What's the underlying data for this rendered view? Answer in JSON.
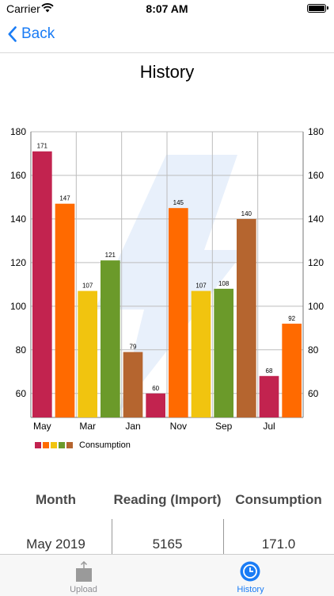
{
  "status_bar": {
    "carrier": "Carrier",
    "time": "8:07 AM"
  },
  "nav": {
    "back_label": "Back"
  },
  "page": {
    "title": "History"
  },
  "chart_data": {
    "type": "bar",
    "categories": [
      "May",
      "",
      "Mar",
      "",
      "Jan",
      "",
      "Nov",
      "",
      "Sep",
      "",
      "Jul",
      ""
    ],
    "values": [
      171,
      147,
      107,
      121,
      79,
      60,
      145,
      107,
      108,
      140,
      68,
      92
    ],
    "colors": [
      "#c2234f",
      "#ff6a00",
      "#f1c40f",
      "#6b9a2a",
      "#b5652f",
      "#c2234f",
      "#ff6a00",
      "#f1c40f",
      "#6b9a2a",
      "#b5652f",
      "#c2234f",
      "#ff6a00"
    ],
    "ylim": [
      49,
      180
    ],
    "yticks": [
      60,
      80,
      100,
      120,
      140,
      160,
      180
    ],
    "legend": {
      "label": "Consumption",
      "colors": [
        "#c2234f",
        "#ff6a00",
        "#f1c40f",
        "#6b9a2a",
        "#b5652f"
      ],
      "position": "bottom-left"
    },
    "grid": true
  },
  "table": {
    "headers": [
      "Month",
      "Reading (Import)",
      "Consumption"
    ],
    "rows": [
      [
        "May 2019",
        "5165",
        "171.0"
      ]
    ]
  },
  "tabbar": {
    "items": [
      {
        "label": "Upload",
        "icon": "upload-icon"
      },
      {
        "label": "History",
        "icon": "clock-icon",
        "active": true
      }
    ]
  }
}
